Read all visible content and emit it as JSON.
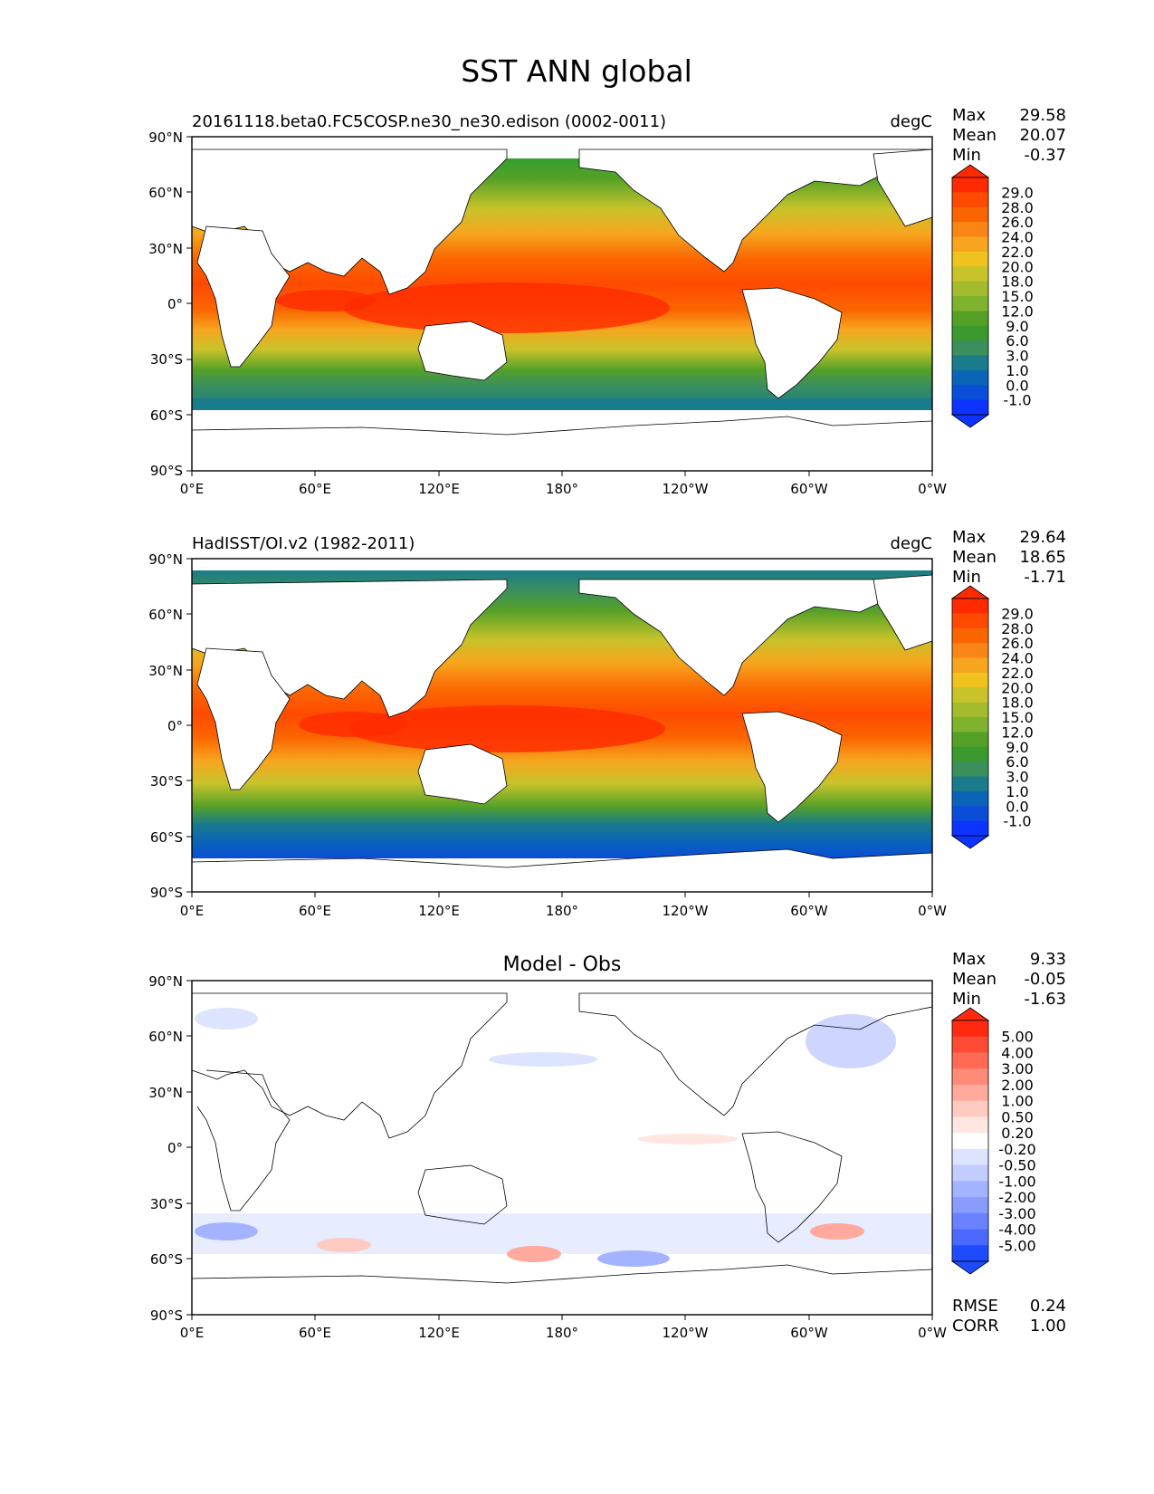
{
  "title": "SST ANN global",
  "lat_labels": [
    "90°N",
    "60°N",
    "30°N",
    "0°",
    "30°S",
    "60°S",
    "90°S"
  ],
  "lon_labels": [
    "0°E",
    "60°E",
    "120°E",
    "180°",
    "120°W",
    "60°W",
    "0°W"
  ],
  "panels": [
    {
      "id": "model",
      "title_left": "20161118.beta0.FC5COSP.ne30_ne30.edison (0002-0011)",
      "title_center": "",
      "units": "degC",
      "stats": [
        {
          "label": "Max",
          "value": "29.58"
        },
        {
          "label": "Mean",
          "value": "20.07"
        },
        {
          "label": "Min",
          "value": "-0.37"
        }
      ],
      "colorbar_levels": [
        "29.0",
        "28.0",
        "26.0",
        "24.0",
        "22.0",
        "20.0",
        "18.0",
        "15.0",
        "12.0",
        "9.0",
        "6.0",
        "3.0",
        "1.0",
        "0.0",
        "-1.0"
      ],
      "colorbar_colors": [
        "#ff2a00",
        "#ff4a00",
        "#fb6500",
        "#f98516",
        "#f7a51f",
        "#efc21e",
        "#c8c32a",
        "#a3bb2d",
        "#7fb22d",
        "#55a128",
        "#3b9a2e",
        "#3b8f5c",
        "#1a7b8a",
        "#0b65b6",
        "#0a4dd8",
        "#0c33ff"
      ],
      "extra_stats": []
    },
    {
      "id": "obs",
      "title_left": "HadISST/OI.v2 (1982-2011)",
      "title_center": "",
      "units": "degC",
      "stats": [
        {
          "label": "Max",
          "value": "29.64"
        },
        {
          "label": "Mean",
          "value": "18.65"
        },
        {
          "label": "Min",
          "value": "-1.71"
        }
      ],
      "colorbar_levels": [
        "29.0",
        "28.0",
        "26.0",
        "24.0",
        "22.0",
        "20.0",
        "18.0",
        "15.0",
        "12.0",
        "9.0",
        "6.0",
        "3.0",
        "1.0",
        "0.0",
        "-1.0"
      ],
      "colorbar_colors": [
        "#ff2a00",
        "#ff4a00",
        "#fb6500",
        "#f98516",
        "#f7a51f",
        "#efc21e",
        "#c8c32a",
        "#a3bb2d",
        "#7fb22d",
        "#55a128",
        "#3b9a2e",
        "#3b8f5c",
        "#1a7b8a",
        "#0b65b6",
        "#0a4dd8",
        "#0c33ff"
      ],
      "extra_stats": []
    },
    {
      "id": "diff",
      "title_left": "",
      "title_center": "Model - Obs",
      "units": "",
      "stats": [
        {
          "label": "Max",
          "value": "9.33"
        },
        {
          "label": "Mean",
          "value": "-0.05"
        },
        {
          "label": "Min",
          "value": "-1.63"
        }
      ],
      "colorbar_levels": [
        "5.00",
        "4.00",
        "3.00",
        "2.00",
        "1.00",
        "0.50",
        "0.20",
        "-0.20",
        "-0.50",
        "-1.00",
        "-2.00",
        "-3.00",
        "-4.00",
        "-5.00"
      ],
      "colorbar_colors": [
        "#ff2a10",
        "#ff4a34",
        "#ff6a55",
        "#ff8a78",
        "#ffaa9c",
        "#ffcac0",
        "#ffe6e0",
        "#ffffff",
        "#dde4ff",
        "#c2ccff",
        "#a4b3ff",
        "#889bff",
        "#6a82ff",
        "#4c69ff",
        "#1f4bff"
      ],
      "extra_stats": [
        {
          "label": "RMSE",
          "value": "0.24"
        },
        {
          "label": "CORR",
          "value": "1.00"
        }
      ]
    }
  ]
}
